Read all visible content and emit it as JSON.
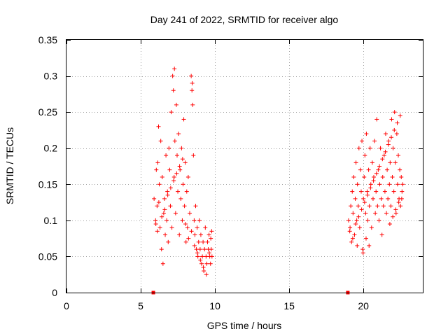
{
  "chart_data": {
    "type": "scatter",
    "title": "Day 241 of 2022, SRMTID for receiver algo",
    "xlabel": "GPS time / hours",
    "ylabel": "SRMTID / TECUs",
    "xlim": [
      0,
      24
    ],
    "ylim": [
      0,
      0.35
    ],
    "grid": true,
    "x_ticks": [
      0,
      5,
      10,
      15,
      20
    ],
    "x_tick_labels": [
      "0",
      "5",
      "10",
      "15",
      "20"
    ],
    "y_ticks": [
      0,
      0.05,
      0.1,
      0.15,
      0.2,
      0.25,
      0.3,
      0.35
    ],
    "y_tick_labels": [
      "0",
      "0.05",
      "0.1",
      "0.15",
      "0.2",
      "0.25",
      "0.3",
      "0.35"
    ],
    "marker_color": "#ff0000",
    "zero_markers": [
      {
        "x": 5.85,
        "y": 0
      },
      {
        "x": 18.95,
        "y": 0
      }
    ],
    "series": [
      {
        "name": "SRMTID",
        "marker": "+",
        "points": [
          [
            5.9,
            0.13
          ],
          [
            6.0,
            0.1
          ],
          [
            6.05,
            0.17
          ],
          [
            6.1,
            0.12
          ],
          [
            6.15,
            0.18
          ],
          [
            6.2,
            0.23
          ],
          [
            6.25,
            0.15
          ],
          [
            6.3,
            0.09
          ],
          [
            6.35,
            0.21
          ],
          [
            6.4,
            0.06
          ],
          [
            6.45,
            0.16
          ],
          [
            6.5,
            0.04
          ],
          [
            6.55,
            0.11
          ],
          [
            6.6,
            0.13
          ],
          [
            6.65,
            0.08
          ],
          [
            6.7,
            0.19
          ],
          [
            6.75,
            0.1
          ],
          [
            6.8,
            0.14
          ],
          [
            6.85,
            0.07
          ],
          [
            6.9,
            0.2
          ],
          [
            6.95,
            0.17
          ],
          [
            7.0,
            0.12
          ],
          [
            7.05,
            0.25
          ],
          [
            7.1,
            0.09
          ],
          [
            7.15,
            0.3
          ],
          [
            7.2,
            0.28
          ],
          [
            7.25,
            0.16
          ],
          [
            7.3,
            0.21
          ],
          [
            7.35,
            0.11
          ],
          [
            7.4,
            0.26
          ],
          [
            7.45,
            0.19
          ],
          [
            7.5,
            0.14
          ],
          [
            7.55,
            0.22
          ],
          [
            7.6,
            0.08
          ],
          [
            7.65,
            0.17
          ],
          [
            7.7,
            0.13
          ],
          [
            7.75,
            0.2
          ],
          [
            7.8,
            0.1
          ],
          [
            7.85,
            0.15
          ],
          [
            7.9,
            0.24
          ],
          [
            7.95,
            0.12
          ],
          [
            8.0,
            0.18
          ],
          [
            8.05,
            0.07
          ],
          [
            8.1,
            0.14
          ],
          [
            8.15,
            0.09
          ],
          [
            8.2,
            0.16
          ],
          [
            8.3,
            0.11
          ],
          [
            8.4,
            0.3
          ],
          [
            8.45,
            0.28
          ],
          [
            8.5,
            0.26
          ],
          [
            8.55,
            0.19
          ],
          [
            8.6,
            0.1
          ],
          [
            8.65,
            0.08
          ],
          [
            8.7,
            0.12
          ],
          [
            8.75,
            0.06
          ],
          [
            8.8,
            0.09
          ],
          [
            8.85,
            0.05
          ],
          [
            8.9,
            0.07
          ],
          [
            8.95,
            0.1
          ],
          [
            9.0,
            0.06
          ],
          [
            9.05,
            0.08
          ],
          [
            9.1,
            0.04
          ],
          [
            9.15,
            0.05
          ],
          [
            9.2,
            0.07
          ],
          [
            9.25,
            0.03
          ],
          [
            9.3,
            0.06
          ],
          [
            9.35,
            0.09
          ],
          [
            9.4,
            0.05
          ],
          [
            9.45,
            0.04
          ],
          [
            9.5,
            0.07
          ],
          [
            9.55,
            0.06
          ],
          [
            9.6,
            0.08
          ],
          [
            9.65,
            0.05
          ],
          [
            9.7,
            0.04
          ],
          [
            9.75,
            0.06
          ],
          [
            9.8,
            0.05
          ],
          [
            6.02,
            0.095
          ],
          [
            6.12,
            0.085
          ],
          [
            6.22,
            0.125
          ],
          [
            6.42,
            0.105
          ],
          [
            6.62,
            0.115
          ],
          [
            6.82,
            0.135
          ],
          [
            7.02,
            0.145
          ],
          [
            7.22,
            0.155
          ],
          [
            7.42,
            0.165
          ],
          [
            7.62,
            0.175
          ],
          [
            7.82,
            0.185
          ],
          [
            8.02,
            0.095
          ],
          [
            8.22,
            0.075
          ],
          [
            8.42,
            0.085
          ],
          [
            8.62,
            0.065
          ],
          [
            8.82,
            0.055
          ],
          [
            9.02,
            0.045
          ],
          [
            9.22,
            0.035
          ],
          [
            9.42,
            0.025
          ],
          [
            9.62,
            0.055
          ],
          [
            9.72,
            0.075
          ],
          [
            9.78,
            0.085
          ],
          [
            7.27,
            0.31
          ],
          [
            8.47,
            0.29
          ],
          [
            19.0,
            0.1
          ],
          [
            19.1,
            0.09
          ],
          [
            19.15,
            0.12
          ],
          [
            19.2,
            0.07
          ],
          [
            19.25,
            0.14
          ],
          [
            19.3,
            0.11
          ],
          [
            19.35,
            0.16
          ],
          [
            19.4,
            0.08
          ],
          [
            19.45,
            0.13
          ],
          [
            19.5,
            0.18
          ],
          [
            19.55,
            0.1
          ],
          [
            19.6,
            0.15
          ],
          [
            19.65,
            0.12
          ],
          [
            19.7,
            0.2
          ],
          [
            19.75,
            0.09
          ],
          [
            19.8,
            0.17
          ],
          [
            19.85,
            0.14
          ],
          [
            19.9,
            0.21
          ],
          [
            19.95,
            0.06
          ],
          [
            20.0,
            0.13
          ],
          [
            20.05,
            0.16
          ],
          [
            20.1,
            0.19
          ],
          [
            20.15,
            0.11
          ],
          [
            20.2,
            0.22
          ],
          [
            20.25,
            0.14
          ],
          [
            20.3,
            0.1
          ],
          [
            20.35,
            0.17
          ],
          [
            20.4,
            0.12
          ],
          [
            20.45,
            0.2
          ],
          [
            20.5,
            0.15
          ],
          [
            20.55,
            0.09
          ],
          [
            20.6,
            0.18
          ],
          [
            20.65,
            0.13
          ],
          [
            20.7,
            0.16
          ],
          [
            20.75,
            0.21
          ],
          [
            20.8,
            0.11
          ],
          [
            20.85,
            0.14
          ],
          [
            20.9,
            0.24
          ],
          [
            20.95,
            0.12
          ],
          [
            21.0,
            0.17
          ],
          [
            21.05,
            0.1
          ],
          [
            21.1,
            0.15
          ],
          [
            21.15,
            0.2
          ],
          [
            21.2,
            0.13
          ],
          [
            21.25,
            0.08
          ],
          [
            21.3,
            0.16
          ],
          [
            21.35,
            0.12
          ],
          [
            21.4,
            0.19
          ],
          [
            21.45,
            0.14
          ],
          [
            21.5,
            0.22
          ],
          [
            21.55,
            0.11
          ],
          [
            21.6,
            0.17
          ],
          [
            21.65,
            0.13
          ],
          [
            21.7,
            0.21
          ],
          [
            21.75,
            0.15
          ],
          [
            21.8,
            0.18
          ],
          [
            21.85,
            0.12
          ],
          [
            21.9,
            0.24
          ],
          [
            21.95,
            0.16
          ],
          [
            22.0,
            0.2
          ],
          [
            22.05,
            0.14
          ],
          [
            22.1,
            0.25
          ],
          [
            22.15,
            0.18
          ],
          [
            22.2,
            0.11
          ],
          [
            22.25,
            0.22
          ],
          [
            22.3,
            0.15
          ],
          [
            22.35,
            0.19
          ],
          [
            22.4,
            0.13
          ],
          [
            22.45,
            0.17
          ],
          [
            22.5,
            0.12
          ],
          [
            22.55,
            0.16
          ],
          [
            22.6,
            0.14
          ],
          [
            22.65,
            0.15
          ],
          [
            19.08,
            0.085
          ],
          [
            19.28,
            0.075
          ],
          [
            19.48,
            0.095
          ],
          [
            19.68,
            0.105
          ],
          [
            19.88,
            0.115
          ],
          [
            20.08,
            0.125
          ],
          [
            20.28,
            0.135
          ],
          [
            20.48,
            0.145
          ],
          [
            20.68,
            0.155
          ],
          [
            20.88,
            0.165
          ],
          [
            21.08,
            0.175
          ],
          [
            21.28,
            0.185
          ],
          [
            21.48,
            0.195
          ],
          [
            21.68,
            0.205
          ],
          [
            21.88,
            0.215
          ],
          [
            22.08,
            0.225
          ],
          [
            22.28,
            0.235
          ],
          [
            22.48,
            0.245
          ],
          [
            22.58,
            0.13
          ],
          [
            22.38,
            0.125
          ],
          [
            22.18,
            0.115
          ],
          [
            21.98,
            0.105
          ],
          [
            21.78,
            0.095
          ],
          [
            20.38,
            0.065
          ],
          [
            20.18,
            0.075
          ],
          [
            19.98,
            0.055
          ],
          [
            19.58,
            0.065
          ]
        ]
      }
    ]
  }
}
